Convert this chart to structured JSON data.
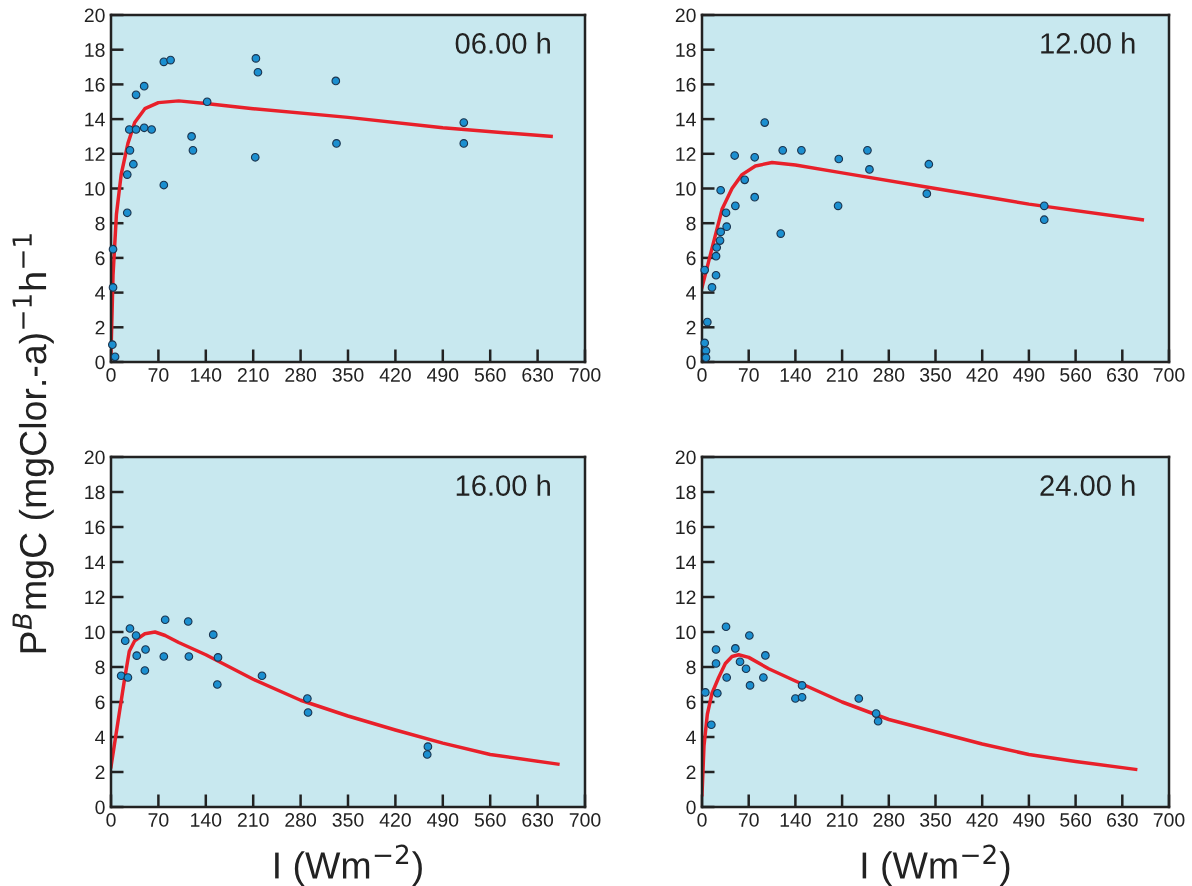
{
  "chart_data": [
    {
      "type": "scatter",
      "title": "06.00 h",
      "ylabel": "P$^{B}$mgC (mgClor.-a)$^{−1}$h$^{−1}$",
      "xlim": [
        0,
        700
      ],
      "ylim": [
        0,
        20
      ],
      "xticks": [
        0,
        70,
        140,
        210,
        280,
        350,
        420,
        490,
        560,
        630,
        700
      ],
      "yticks": [
        0,
        2,
        4,
        6,
        8,
        10,
        12,
        14,
        16,
        18,
        20
      ],
      "grid": false,
      "series": [
        {
          "marker": "circle",
          "color": "#1b8fd0",
          "x": [
            2,
            6,
            3,
            3,
            24,
            24,
            28,
            33,
            27,
            37,
            37,
            49,
            49,
            60,
            78,
            88,
            78,
            119,
            121,
            142,
            214,
            217,
            213,
            332,
            333,
            521,
            521
          ],
          "values": [
            1.0,
            0.3,
            6.5,
            4.3,
            8.6,
            10.8,
            12.2,
            11.4,
            13.4,
            13.4,
            15.4,
            15.9,
            13.5,
            13.4,
            17.3,
            17.4,
            10.2,
            13.0,
            12.2,
            15.0,
            17.5,
            16.7,
            11.8,
            16.2,
            12.6,
            13.8,
            12.6
          ]
        },
        {
          "type": "line",
          "marker": "none",
          "color": "#e8202a",
          "line_style": "solid",
          "x": [
            0,
            3,
            8,
            15,
            25,
            35,
            50,
            70,
            100,
            140,
            210,
            350,
            490,
            650
          ],
          "values": [
            0.5,
            5,
            8.5,
            10.8,
            12.6,
            13.8,
            14.6,
            14.95,
            15.05,
            14.9,
            14.6,
            14.1,
            13.5,
            13.0
          ]
        }
      ]
    },
    {
      "type": "scatter",
      "title": "12.00 h",
      "xlim": [
        0,
        700
      ],
      "ylim": [
        0,
        20
      ],
      "xticks": [
        0,
        70,
        140,
        210,
        280,
        350,
        420,
        490,
        560,
        630,
        700
      ],
      "yticks": [
        0,
        2,
        4,
        6,
        8,
        10,
        12,
        14,
        16,
        18,
        20
      ],
      "grid": false,
      "series": [
        {
          "marker": "circle",
          "color": "#1b8fd0",
          "x": [
            4,
            6,
            6,
            8,
            4,
            15,
            21,
            21,
            22,
            27,
            28,
            28,
            36,
            37,
            49,
            50,
            64,
            79,
            79,
            94,
            118,
            121,
            149,
            205,
            204,
            248,
            251,
            340,
            337,
            513,
            513
          ],
          "values": [
            1.1,
            0.65,
            0.25,
            2.3,
            5.3,
            4.3,
            5.0,
            6.1,
            6.6,
            7.0,
            7.5,
            9.9,
            8.6,
            7.8,
            11.9,
            9.0,
            10.5,
            11.8,
            9.5,
            13.8,
            7.4,
            12.2,
            12.2,
            11.7,
            9.0,
            12.2,
            11.1,
            11.4,
            9.7,
            9.0,
            8.2
          ]
        },
        {
          "type": "line",
          "marker": "none",
          "color": "#e8202a",
          "line_style": "solid",
          "x": [
            0,
            10,
            20,
            30,
            45,
            60,
            80,
            105,
            140,
            210,
            350,
            490,
            660
          ],
          "values": [
            4.3,
            5.8,
            7.3,
            8.8,
            10.0,
            10.8,
            11.3,
            11.5,
            11.35,
            10.9,
            10.0,
            9.1,
            8.2
          ]
        }
      ]
    },
    {
      "type": "scatter",
      "title": "16.00 h",
      "xlabel": "I (Wm$^{−2}$)",
      "xlim": [
        0,
        700
      ],
      "ylim": [
        0,
        20
      ],
      "xticks": [
        0,
        70,
        140,
        210,
        280,
        350,
        420,
        490,
        560,
        630,
        700
      ],
      "yticks": [
        0,
        2,
        4,
        6,
        8,
        10,
        12,
        14,
        16,
        18,
        20
      ],
      "grid": false,
      "series": [
        {
          "marker": "circle",
          "color": "#1b8fd0",
          "x": [
            15,
            25,
            21,
            28,
            37,
            38,
            51,
            50,
            80,
            78,
            114,
            115,
            151,
            158,
            157,
            223,
            290,
            291,
            468,
            467
          ],
          "values": [
            7.5,
            7.4,
            9.5,
            10.2,
            9.8,
            8.65,
            9.0,
            7.8,
            10.7,
            8.6,
            10.6,
            8.6,
            9.85,
            8.55,
            7.0,
            7.5,
            6.2,
            5.4,
            3.45,
            3.0
          ]
        },
        {
          "type": "line",
          "marker": "none",
          "color": "#e8202a",
          "line_style": "solid",
          "x": [
            0,
            10,
            20,
            27,
            35,
            50,
            65,
            80,
            100,
            140,
            210,
            280,
            350,
            420,
            490,
            560,
            660
          ],
          "values": [
            2.3,
            4.8,
            7.3,
            8.9,
            9.5,
            9.9,
            10.0,
            9.8,
            9.4,
            8.7,
            7.3,
            6.1,
            5.2,
            4.4,
            3.65,
            3.0,
            2.45
          ]
        }
      ]
    },
    {
      "type": "scatter",
      "title": "24.00 h",
      "xlabel": "I (Wm$^{−2}$)",
      "xlim": [
        0,
        700
      ],
      "ylim": [
        0,
        20
      ],
      "xticks": [
        0,
        70,
        140,
        210,
        280,
        350,
        420,
        490,
        560,
        630,
        700
      ],
      "yticks": [
        0,
        2,
        4,
        6,
        8,
        10,
        12,
        14,
        16,
        18,
        20
      ],
      "grid": false,
      "series": [
        {
          "marker": "circle",
          "color": "#1b8fd0",
          "x": [
            5,
            14,
            21,
            21,
            23,
            36,
            37,
            50,
            57,
            66,
            71,
            72,
            92,
            95,
            140,
            150,
            150,
            235,
            261,
            264
          ],
          "values": [
            6.55,
            4.7,
            9.0,
            8.2,
            6.5,
            10.3,
            7.4,
            9.06,
            8.3,
            7.9,
            9.8,
            6.95,
            7.4,
            8.66,
            6.2,
            6.27,
            6.95,
            6.2,
            5.34,
            4.9
          ]
        },
        {
          "type": "line",
          "marker": "none",
          "color": "#e8202a",
          "line_style": "solid",
          "x": [
            0,
            3,
            8,
            15,
            25,
            35,
            45,
            55,
            70,
            100,
            140,
            210,
            280,
            350,
            420,
            490,
            560,
            650
          ],
          "values": [
            0.7,
            3.5,
            5.3,
            6.5,
            7.4,
            8.2,
            8.6,
            8.7,
            8.55,
            7.9,
            7.2,
            6.0,
            5.0,
            4.3,
            3.6,
            3.0,
            2.6,
            2.15
          ]
        }
      ]
    }
  ]
}
